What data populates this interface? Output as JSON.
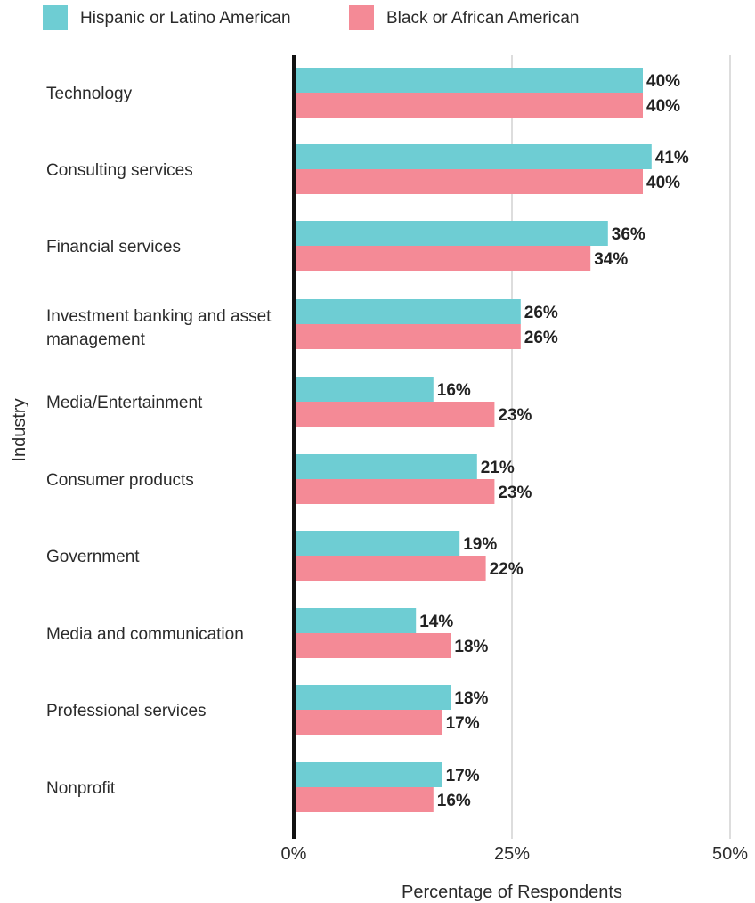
{
  "chart_data": {
    "type": "bar",
    "orientation": "horizontal",
    "title": "",
    "xlabel": "Percentage of Respondents",
    "ylabel": "Industry",
    "xlim": [
      0,
      50
    ],
    "x_ticks": [
      0,
      25,
      50
    ],
    "x_tick_labels": [
      "0%",
      "25%",
      "50%"
    ],
    "grid": true,
    "legend_position": "top-left",
    "value_suffix": "%",
    "categories": [
      "Technology",
      "Consulting services",
      "Financial services",
      "Investment banking and asset management",
      "Media/Entertainment",
      "Consumer products",
      "Government",
      "Media and communication",
      "Professional services",
      "Nonprofit"
    ],
    "series": [
      {
        "name": "Hispanic or Latino American",
        "color": "#6ecdd3",
        "values": [
          40,
          41,
          36,
          26,
          16,
          21,
          19,
          14,
          18,
          17
        ]
      },
      {
        "name": "Black or African American",
        "color": "#f48a96",
        "values": [
          40,
          40,
          34,
          26,
          23,
          23,
          22,
          18,
          17,
          16
        ]
      }
    ]
  }
}
